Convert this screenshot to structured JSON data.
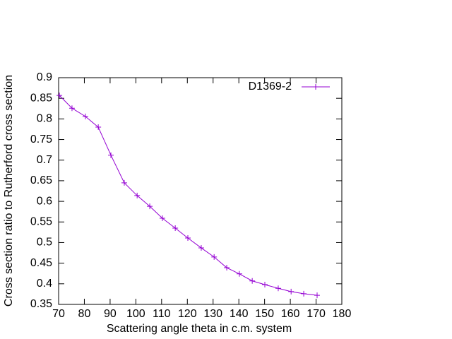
{
  "chart_data": {
    "type": "line",
    "xlabel": "Scattering angle theta in c.m. system",
    "ylabel": "Cross section ratio to Rutherford cross section",
    "x": [
      70.3,
      75.2,
      80.4,
      85.4,
      90.3,
      95.5,
      100.5,
      105.4,
      110.3,
      115.3,
      120.2,
      125.4,
      130.4,
      135.3,
      140.2,
      145.2,
      150.1,
      155.3,
      160.3,
      165.2,
      170.4
    ],
    "series": [
      {
        "name": "D1369-2",
        "color": "#9400d3",
        "values": [
          0.857,
          0.826,
          0.806,
          0.78,
          0.712,
          0.645,
          0.614,
          0.588,
          0.559,
          0.535,
          0.511,
          0.487,
          0.465,
          0.439,
          0.424,
          0.407,
          0.398,
          0.389,
          0.381,
          0.376,
          0.372
        ]
      }
    ],
    "xlim": [
      70,
      180
    ],
    "xticks": [
      70,
      80,
      90,
      100,
      110,
      120,
      130,
      140,
      150,
      160,
      170,
      180
    ],
    "ylim": [
      0.35,
      0.9
    ],
    "yticks": [
      0.35,
      0.4,
      0.45,
      0.5,
      0.55,
      0.6,
      0.65,
      0.7,
      0.75,
      0.8,
      0.85,
      0.9
    ],
    "legend": "top-right"
  }
}
